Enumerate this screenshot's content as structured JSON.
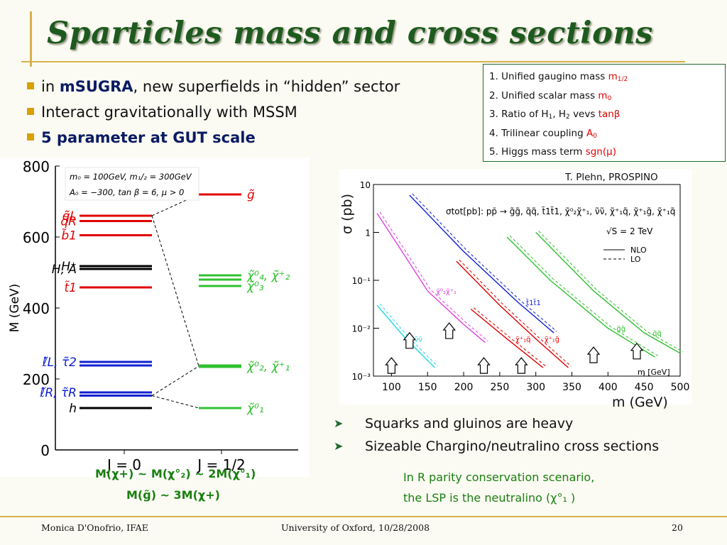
{
  "slide": {
    "title": "Sparticles mass and cross sections",
    "bullets": [
      {
        "prefix": "in ",
        "bold": "mSUGRA",
        "rest": ", new superfields in “hidden” sector"
      },
      {
        "text": "Interact gravitationally with MSSM"
      },
      {
        "bold_text": "5 parameter at GUT scale"
      }
    ],
    "params_box": [
      {
        "text": "1. Unified gaugino mass ",
        "sym": "m",
        "sub": "1/2"
      },
      {
        "text": "2. Unified scalar mass ",
        "sym": "m",
        "sub": "0"
      },
      {
        "text_a": "3. Ratio of H",
        "sub1": "1",
        "text_b": ", H",
        "sub2": "2",
        "text_c": " vevs ",
        "sym": "tanβ"
      },
      {
        "text": "4. Trilinear coupling ",
        "sym": "A",
        "sub": "0"
      },
      {
        "text": "5. Higgs mass term ",
        "sym": "sgn(μ)"
      }
    ],
    "credit": "T. Plehn, PROSPINO",
    "sigma_label": "σ (pb)",
    "mass_axis_label": "m (GeV)",
    "right_bullets": [
      "Squarks and gluinos are heavy",
      "Sizeable Chargino/neutralino cross sections"
    ],
    "green_notes": [
      "M(χ+) ~ M(χ°₂) ~ 2M(χ°₁)",
      "M(g̃)  ~ 3M(χ+)"
    ],
    "lsp_note_line1": "In R parity conservation scenario,",
    "lsp_note_line2": "the LSP is the neutralino  (χ°₁ )",
    "footer": {
      "left": "Monica D'Onofrio, IFAE",
      "center": "University of Oxford, 10/28/2008",
      "page": "20"
    },
    "colors": {
      "title": "#1e5a1e",
      "gold": "#d8b14a",
      "green_text": "#1a7f10",
      "red": "#e00000",
      "blue": "#1020d0",
      "green": "#30c030",
      "black": "#000000"
    }
  },
  "chart_data": [
    {
      "type": "scatter",
      "description_key": "mass_spectrum",
      "ylabel": "M (GeV)",
      "ylim": [
        0,
        800
      ],
      "yticks": [
        0,
        200,
        400,
        600,
        800
      ],
      "categories": [
        "J = 0",
        "J = 1/2"
      ],
      "inset_line1": "m₀ = 100GeV, m₁/₂ = 300GeV",
      "inset_line2": "A₀ = −300, tan β = 6, μ > 0",
      "levels": [
        {
          "column": "J = 0",
          "label": "q̃L",
          "mass": 660,
          "color": "red"
        },
        {
          "column": "J = 0",
          "label": "q̃R",
          "mass": 645,
          "color": "red"
        },
        {
          "column": "J = 0",
          "label": "b̃1",
          "mass": 605,
          "color": "red"
        },
        {
          "column": "J = 0",
          "label": "H⁺",
          "mass": 518,
          "color": "black"
        },
        {
          "column": "J = 0",
          "label": "H, A",
          "mass": 510,
          "color": "black"
        },
        {
          "column": "J = 0",
          "label": "t̃1",
          "mass": 458,
          "color": "red"
        },
        {
          "column": "J = 0",
          "label": "ℓ̃L, τ̃2",
          "mass": 248,
          "color": "blue"
        },
        {
          "column": "J = 0",
          "label": "ℓ̃L, τ̃2",
          "mass": 238,
          "color": "blue"
        },
        {
          "column": "J = 0",
          "label": "ℓ̃R, τ̃R",
          "mass": 162,
          "color": "blue"
        },
        {
          "column": "J = 0",
          "label": "ℓ̃R, τ̃R",
          "mass": 153,
          "color": "blue"
        },
        {
          "column": "J = 0",
          "label": "h",
          "mass": 118,
          "color": "black"
        },
        {
          "column": "J = 1/2",
          "label": "g̃",
          "mass": 720,
          "color": "red"
        },
        {
          "column": "J = 1/2",
          "label": "χ̃⁰₄, χ̃⁺₂",
          "mass": 492,
          "color": "green"
        },
        {
          "column": "J = 1/2",
          "label": "χ̃⁰₄, χ̃⁺₂",
          "mass": 480,
          "color": "green"
        },
        {
          "column": "J = 1/2",
          "label": "χ̃⁰₃",
          "mass": 462,
          "color": "green"
        },
        {
          "column": "J = 1/2",
          "label": "χ̃⁰₂, χ̃⁺₁",
          "mass": 236,
          "color": "green"
        },
        {
          "column": "J = 1/2",
          "label": "χ̃⁰₁",
          "mass": 118,
          "color": "green"
        }
      ]
    },
    {
      "type": "line",
      "description_key": "cross_sections",
      "xlim": [
        75,
        500
      ],
      "xticks": [
        100,
        150,
        200,
        250,
        300,
        350,
        400,
        450,
        500
      ],
      "ylog": true,
      "ylim": [
        0.001,
        10
      ],
      "ytick_labels": [
        "10",
        "1",
        "10⁻¹",
        "10⁻²",
        "10⁻³"
      ],
      "legend_text": "σtot[pb]: pp̄ → g̃g̃, q̃q̃, t̃1t̃1, χ̃⁰₂χ̃⁺₁, ν̃ν̃, χ̃⁺₁q̃, χ̃⁺₁g̃, χ̃⁺₁q̃",
      "energy": "√S = 2 TeV",
      "nlo_label": "NLO",
      "lo_label": "LO",
      "x_unit": "m [GeV]",
      "series": [
        {
          "name": "χ̃⁰₂χ̃⁺₁",
          "color": "magenta",
          "x": [
            80,
            120,
            150,
            200,
            230
          ],
          "y": [
            2.5,
            0.3,
            0.06,
            0.012,
            0.005
          ],
          "arrow_x": 125
        },
        {
          "name": "ν̃ν̃",
          "color": "cyan",
          "x": [
            80,
            120,
            160
          ],
          "y": [
            0.03,
            0.006,
            0.0015
          ],
          "arrow_x": 100
        },
        {
          "name": "t̃1t̃1",
          "color": "blue",
          "x": [
            125,
            200,
            275,
            325
          ],
          "y": [
            6,
            0.4,
            0.035,
            0.008
          ],
          "arrow_x": 180
        },
        {
          "name": "χ̃⁺₁g̃",
          "color": "red",
          "x": [
            190,
            250,
            300,
            345
          ],
          "y": [
            0.25,
            0.03,
            0.006,
            0.0015
          ],
          "arrow_x": 280
        },
        {
          "name": "χ̃⁺₁q̃",
          "color": "red",
          "x": [
            210,
            260,
            310
          ],
          "y": [
            0.025,
            0.006,
            0.0015
          ],
          "arrow_x": 228
        },
        {
          "name": "g̃g̃",
          "color": "green",
          "x": [
            260,
            320,
            400,
            465
          ],
          "y": [
            0.8,
            0.1,
            0.01,
            0.0025
          ],
          "arrow_x": 380
        },
        {
          "name": "q̃q̃",
          "color": "green",
          "x": [
            300,
            380,
            450,
            500
          ],
          "y": [
            1.0,
            0.06,
            0.008,
            0.003
          ],
          "arrow_x": 440
        }
      ]
    }
  ]
}
